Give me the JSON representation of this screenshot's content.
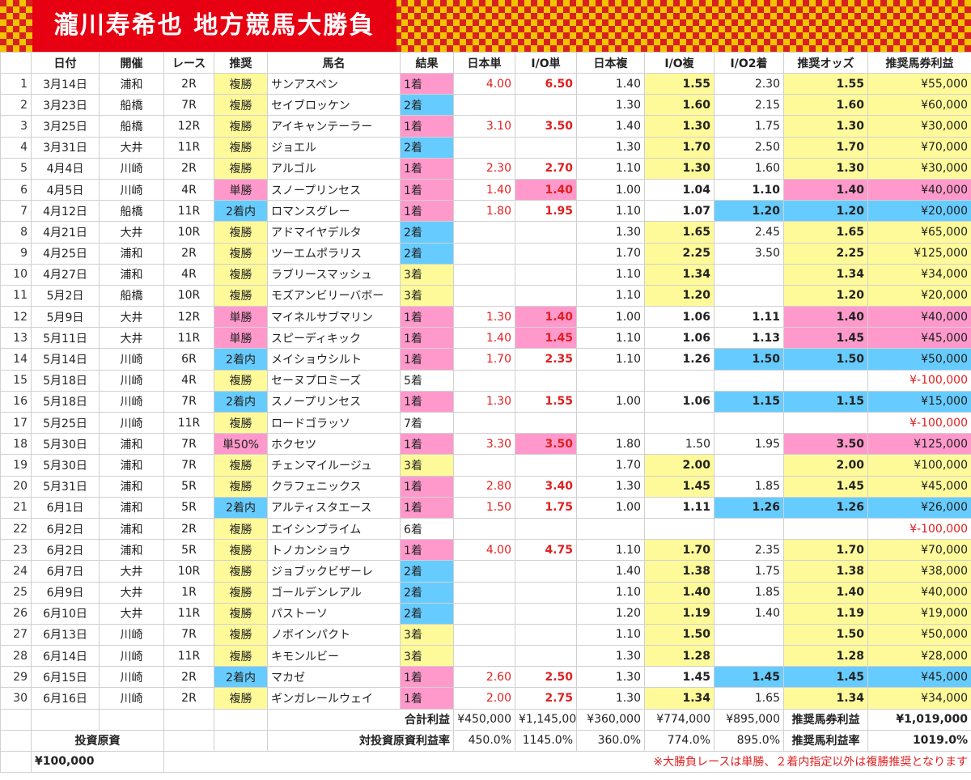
{
  "title": "瀧川寿希也 地方競馬大勝負",
  "colors": {
    "yellow": "#fffa99",
    "pink": "#ff99cc",
    "blue": "#66ccff",
    "red": "#e02020"
  },
  "headers": [
    "日付",
    "開催",
    "レース",
    "推奨",
    "馬名",
    "結果",
    "日本単",
    "I/O単",
    "日本複",
    "I/O複",
    "I/O2着",
    "推奨オッズ",
    "推奨馬券利益"
  ],
  "rows": [
    [
      "1",
      "3月14日",
      "浦和",
      "2R",
      "複勝",
      "サンアスペン",
      "1着",
      "4.00",
      "6.50",
      "1.40",
      "1.55",
      "2.30",
      "1.55",
      "¥55,000"
    ],
    [
      "2",
      "3月23日",
      "船橋",
      "7R",
      "複勝",
      "セイブロッケン",
      "2着",
      "",
      "",
      "1.30",
      "1.60",
      "2.15",
      "1.60",
      "¥60,000"
    ],
    [
      "3",
      "3月25日",
      "船橋",
      "12R",
      "複勝",
      "アイキャンテーラー",
      "1着",
      "3.10",
      "3.50",
      "1.40",
      "1.30",
      "1.75",
      "1.30",
      "¥30,000"
    ],
    [
      "4",
      "3月31日",
      "大井",
      "11R",
      "複勝",
      "ジョエル",
      "2着",
      "",
      "",
      "1.30",
      "1.70",
      "2.50",
      "1.70",
      "¥70,000"
    ],
    [
      "5",
      "4月4日",
      "川崎",
      "2R",
      "複勝",
      "アルゴル",
      "1着",
      "2.30",
      "2.70",
      "1.10",
      "1.30",
      "1.60",
      "1.30",
      "¥30,000"
    ],
    [
      "6",
      "4月5日",
      "川崎",
      "4R",
      "単勝",
      "スノープリンセス",
      "1着",
      "1.40",
      "1.40",
      "1.00",
      "1.04",
      "1.10",
      "1.40",
      "¥40,000"
    ],
    [
      "7",
      "4月12日",
      "船橋",
      "11R",
      "2着内",
      "ロマンスグレー",
      "1着",
      "1.80",
      "1.95",
      "1.10",
      "1.07",
      "1.20",
      "1.20",
      "¥20,000"
    ],
    [
      "8",
      "4月21日",
      "大井",
      "10R",
      "複勝",
      "アドマイヤデルタ",
      "2着",
      "",
      "",
      "1.30",
      "1.65",
      "2.45",
      "1.65",
      "¥65,000"
    ],
    [
      "9",
      "4月25日",
      "浦和",
      "2R",
      "複勝",
      "ツーエムポラリス",
      "2着",
      "",
      "",
      "1.70",
      "2.25",
      "3.50",
      "2.25",
      "¥125,000"
    ],
    [
      "10",
      "4月27日",
      "浦和",
      "4R",
      "複勝",
      "ラブリースマッシュ",
      "3着",
      "",
      "",
      "1.10",
      "1.34",
      "",
      "1.34",
      "¥34,000"
    ],
    [
      "11",
      "5月2日",
      "船橋",
      "10R",
      "複勝",
      "モズアンビリーバボー",
      "3着",
      "",
      "",
      "1.10",
      "1.20",
      "",
      "1.20",
      "¥20,000"
    ],
    [
      "12",
      "5月9日",
      "大井",
      "12R",
      "単勝",
      "マイネルサブマリン",
      "1着",
      "1.30",
      "1.40",
      "1.00",
      "1.06",
      "1.11",
      "1.40",
      "¥40,000"
    ],
    [
      "13",
      "5月11日",
      "大井",
      "11R",
      "単勝",
      "スピーディキック",
      "1着",
      "1.40",
      "1.45",
      "1.10",
      "1.06",
      "1.13",
      "1.45",
      "¥45,000"
    ],
    [
      "14",
      "5月14日",
      "川崎",
      "6R",
      "2着内",
      "メイショウシルト",
      "1着",
      "1.70",
      "2.35",
      "1.10",
      "1.26",
      "1.50",
      "1.50",
      "¥50,000"
    ],
    [
      "15",
      "5月18日",
      "川崎",
      "4R",
      "複勝",
      "セーヌプロミーズ",
      "5着",
      "",
      "",
      "",
      "",
      "",
      "",
      "¥-100,000"
    ],
    [
      "16",
      "5月18日",
      "川崎",
      "7R",
      "2着内",
      "スノープリンセス",
      "1着",
      "1.30",
      "1.55",
      "1.00",
      "1.06",
      "1.15",
      "1.15",
      "¥15,000"
    ],
    [
      "17",
      "5月25日",
      "川崎",
      "11R",
      "複勝",
      "ロードゴラッソ",
      "7着",
      "",
      "",
      "",
      "",
      "",
      "",
      "¥-100,000"
    ],
    [
      "18",
      "5月30日",
      "浦和",
      "7R",
      "単50%",
      "ホクセツ",
      "1着",
      "3.30",
      "3.50",
      "1.80",
      "1.50",
      "1.95",
      "3.50",
      "¥125,000"
    ],
    [
      "19",
      "5月30日",
      "浦和",
      "7R",
      "複勝",
      "チェンマイルージュ",
      "3着",
      "",
      "",
      "1.70",
      "2.00",
      "",
      "2.00",
      "¥100,000"
    ],
    [
      "20",
      "5月31日",
      "浦和",
      "5R",
      "複勝",
      "クラフェニックス",
      "1着",
      "2.80",
      "3.40",
      "1.30",
      "1.45",
      "1.85",
      "1.45",
      "¥45,000"
    ],
    [
      "21",
      "6月1日",
      "浦和",
      "5R",
      "2着内",
      "アルティスタエース",
      "1着",
      "1.50",
      "1.75",
      "1.00",
      "1.11",
      "1.26",
      "1.26",
      "¥26,000"
    ],
    [
      "22",
      "6月2日",
      "浦和",
      "2R",
      "複勝",
      "エイシンプライム",
      "6着",
      "",
      "",
      "",
      "",
      "",
      "",
      "¥-100,000"
    ],
    [
      "23",
      "6月2日",
      "浦和",
      "5R",
      "複勝",
      "トノカンショウ",
      "1着",
      "4.00",
      "4.75",
      "1.10",
      "1.70",
      "2.35",
      "1.70",
      "¥70,000"
    ],
    [
      "24",
      "6月7日",
      "大井",
      "10R",
      "複勝",
      "ジョブックビザーレ",
      "2着",
      "",
      "",
      "1.40",
      "1.38",
      "1.75",
      "1.38",
      "¥38,000"
    ],
    [
      "25",
      "6月9日",
      "大井",
      "1R",
      "複勝",
      "ゴールデンレアル",
      "2着",
      "",
      "",
      "1.10",
      "1.40",
      "1.85",
      "1.40",
      "¥40,000"
    ],
    [
      "26",
      "6月10日",
      "大井",
      "11R",
      "複勝",
      "パストーソ",
      "2着",
      "",
      "",
      "1.20",
      "1.19",
      "1.40",
      "1.19",
      "¥19,000"
    ],
    [
      "27",
      "6月13日",
      "川崎",
      "7R",
      "複勝",
      "ノボインパクト",
      "3着",
      "",
      "",
      "1.10",
      "1.50",
      "",
      "1.50",
      "¥50,000"
    ],
    [
      "28",
      "6月14日",
      "川崎",
      "11R",
      "複勝",
      "キモンルビー",
      "3着",
      "",
      "",
      "1.30",
      "1.28",
      "",
      "1.28",
      "¥28,000"
    ],
    [
      "29",
      "6月15日",
      "川崎",
      "2R",
      "2着内",
      "マカゼ",
      "1着",
      "2.60",
      "2.50",
      "1.30",
      "1.45",
      "1.45",
      "1.45",
      "¥45,000"
    ],
    [
      "30",
      "6月16日",
      "川崎",
      "2R",
      "複勝",
      "ギンガレールウェイ",
      "1着",
      "2.00",
      "2.75",
      "1.30",
      "1.34",
      "1.65",
      "1.34",
      "¥34,000"
    ]
  ],
  "summary": {
    "total_label": "合計利益",
    "totals": [
      "¥450,000",
      "¥1,145,000",
      "¥360,000",
      "¥774,000",
      "¥895,000"
    ],
    "rec_profit_label": "推奨馬券利益",
    "rec_profit": "¥1,019,000",
    "capital_label": "投資原資",
    "ratio_label": "対投資原資利益率",
    "ratios": [
      "450.0%",
      "1145.0%",
      "360.0%",
      "774.0%",
      "895.0%"
    ],
    "rec_ratio_label": "推奨馬利益率",
    "rec_ratio": "1019.0%",
    "capital": "¥100,000",
    "note": "※大勝負レースは単勝、２着内指定以外は複勝推奨となります"
  }
}
